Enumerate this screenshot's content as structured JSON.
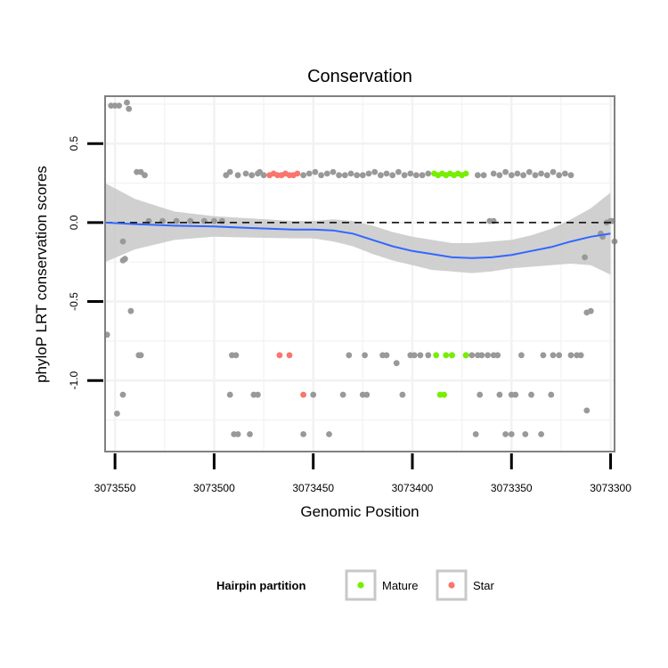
{
  "chart_data": {
    "type": "scatter",
    "title": "Conservation",
    "xlabel": "Genomic Position",
    "ylabel": "phyloP LRT conservation scores",
    "x_reversed": true,
    "xlim": [
      3073555,
      3073298
    ],
    "ylim": [
      -1.45,
      0.8
    ],
    "xticks": [
      3073550,
      3073500,
      3073450,
      3073400,
      3073350,
      3073300
    ],
    "xtick_labels": [
      "3073550",
      "3073500",
      "3073450",
      "3073400",
      "3073350",
      "3073300"
    ],
    "yticks": [
      0.5,
      0.0,
      -0.5,
      -1.0
    ],
    "ytick_labels": [
      "0.5",
      "0.0",
      "-0.5",
      "-1.0"
    ],
    "grid": true,
    "reference_line": {
      "y": 0.0,
      "style": "dashed",
      "color": "#000000"
    },
    "colors": {
      "Other": "#999999",
      "Mature": "#77ee00",
      "Star": "#f8766d",
      "smooth": "#3366ff",
      "ribbon": "#c8c8c8",
      "panel_border": "#808080"
    },
    "legend": {
      "title": "Hairpin partition",
      "position": "bottom",
      "entries": [
        {
          "name": "Mature",
          "color": "#77ee00"
        },
        {
          "name": "Star",
          "color": "#f8766d"
        }
      ]
    },
    "smooth": {
      "x": [
        3073555,
        3073540,
        3073520,
        3073500,
        3073480,
        3073460,
        3073450,
        3073440,
        3073430,
        3073420,
        3073410,
        3073400,
        3073390,
        3073380,
        3073370,
        3073360,
        3073350,
        3073340,
        3073330,
        3073320,
        3073310,
        3073300
      ],
      "y": [
        0.0,
        -0.01,
        -0.02,
        -0.025,
        -0.035,
        -0.045,
        -0.045,
        -0.05,
        -0.07,
        -0.11,
        -0.15,
        -0.18,
        -0.2,
        -0.22,
        -0.225,
        -0.22,
        -0.205,
        -0.18,
        -0.155,
        -0.12,
        -0.09,
        -0.07
      ],
      "lower": [
        -0.25,
        -0.17,
        -0.11,
        -0.09,
        -0.095,
        -0.1,
        -0.1,
        -0.12,
        -0.15,
        -0.2,
        -0.24,
        -0.27,
        -0.3,
        -0.31,
        -0.32,
        -0.31,
        -0.29,
        -0.28,
        -0.27,
        -0.26,
        -0.27,
        -0.33
      ],
      "upper": [
        0.25,
        0.15,
        0.07,
        0.04,
        0.025,
        0.01,
        0.01,
        0.02,
        0.01,
        -0.02,
        -0.06,
        -0.09,
        -0.11,
        -0.13,
        -0.13,
        -0.12,
        -0.11,
        -0.08,
        -0.04,
        0.02,
        0.09,
        0.19
      ]
    },
    "series": [
      {
        "name": "Other",
        "points": [
          [
            3073552,
            0.74
          ],
          [
            3073550,
            0.74
          ],
          [
            3073548,
            0.74
          ],
          [
            3073544,
            0.76
          ],
          [
            3073543,
            0.72
          ],
          [
            3073539,
            0.32
          ],
          [
            3073537,
            0.32
          ],
          [
            3073535,
            0.3
          ],
          [
            3073538,
            -0.84
          ],
          [
            3073537,
            -0.84
          ],
          [
            3073542,
            -0.56
          ],
          [
            3073545,
            -0.23
          ],
          [
            3073546,
            -0.24
          ],
          [
            3073546,
            -0.12
          ],
          [
            3073554,
            -0.71
          ],
          [
            3073549,
            -1.21
          ],
          [
            3073546,
            -1.09
          ],
          [
            3073533,
            0.01
          ],
          [
            3073526,
            0.01
          ],
          [
            3073519,
            0.01
          ],
          [
            3073512,
            0.01
          ],
          [
            3073505,
            0.01
          ],
          [
            3073500,
            0.01
          ],
          [
            3073496,
            0.01
          ],
          [
            3073494,
            0.3
          ],
          [
            3073492,
            0.32
          ],
          [
            3073488,
            0.3
          ],
          [
            3073484,
            0.31
          ],
          [
            3073481,
            0.3
          ],
          [
            3073478,
            0.31
          ],
          [
            3073477,
            0.32
          ],
          [
            3073475,
            0.3
          ],
          [
            3073455,
            0.3
          ],
          [
            3073452,
            0.31
          ],
          [
            3073449,
            0.32
          ],
          [
            3073446,
            0.3
          ],
          [
            3073443,
            0.31
          ],
          [
            3073440,
            0.32
          ],
          [
            3073437,
            0.3
          ],
          [
            3073434,
            0.3
          ],
          [
            3073431,
            0.31
          ],
          [
            3073428,
            0.3
          ],
          [
            3073425,
            0.3
          ],
          [
            3073422,
            0.31
          ],
          [
            3073419,
            0.32
          ],
          [
            3073416,
            0.3
          ],
          [
            3073413,
            0.31
          ],
          [
            3073410,
            0.3
          ],
          [
            3073407,
            0.32
          ],
          [
            3073404,
            0.3
          ],
          [
            3073401,
            0.31
          ],
          [
            3073398,
            0.3
          ],
          [
            3073395,
            0.3
          ],
          [
            3073392,
            0.31
          ],
          [
            3073367,
            0.3
          ],
          [
            3073364,
            0.3
          ],
          [
            3073359,
            0.31
          ],
          [
            3073356,
            0.3
          ],
          [
            3073353,
            0.32
          ],
          [
            3073350,
            0.3
          ],
          [
            3073347,
            0.31
          ],
          [
            3073344,
            0.3
          ],
          [
            3073341,
            0.32
          ],
          [
            3073338,
            0.3
          ],
          [
            3073335,
            0.31
          ],
          [
            3073332,
            0.3
          ],
          [
            3073329,
            0.32
          ],
          [
            3073326,
            0.3
          ],
          [
            3073323,
            0.31
          ],
          [
            3073320,
            0.3
          ],
          [
            3073361,
            0.01
          ],
          [
            3073359,
            0.01
          ],
          [
            3073300,
            0.01
          ],
          [
            3073299,
            0.01
          ],
          [
            3073302,
            0.0
          ],
          [
            3073304,
            -0.09
          ],
          [
            3073305,
            -0.07
          ],
          [
            3073298,
            -0.12
          ],
          [
            3073310,
            -0.56
          ],
          [
            3073312,
            -0.57
          ],
          [
            3073313,
            -0.22
          ],
          [
            3073312,
            -1.19
          ],
          [
            3073491,
            -0.84
          ],
          [
            3073489,
            -0.84
          ],
          [
            3073492,
            -1.09
          ],
          [
            3073480,
            -1.09
          ],
          [
            3073478,
            -1.09
          ],
          [
            3073490,
            -1.34
          ],
          [
            3073488,
            -1.34
          ],
          [
            3073482,
            -1.34
          ],
          [
            3073455,
            -1.34
          ],
          [
            3073442,
            -1.34
          ],
          [
            3073450,
            -1.09
          ],
          [
            3073435,
            -1.09
          ],
          [
            3073425,
            -1.09
          ],
          [
            3073423,
            -1.09
          ],
          [
            3073405,
            -1.09
          ],
          [
            3073432,
            -0.84
          ],
          [
            3073424,
            -0.84
          ],
          [
            3073415,
            -0.84
          ],
          [
            3073413,
            -0.84
          ],
          [
            3073401,
            -0.84
          ],
          [
            3073399,
            -0.84
          ],
          [
            3073396,
            -0.84
          ],
          [
            3073392,
            -0.84
          ],
          [
            3073373,
            -0.84
          ],
          [
            3073370,
            -0.84
          ],
          [
            3073367,
            -0.84
          ],
          [
            3073365,
            -0.84
          ],
          [
            3073362,
            -0.84
          ],
          [
            3073359,
            -0.84
          ],
          [
            3073357,
            -0.84
          ],
          [
            3073345,
            -0.84
          ],
          [
            3073334,
            -0.84
          ],
          [
            3073329,
            -0.84
          ],
          [
            3073326,
            -0.84
          ],
          [
            3073320,
            -0.84
          ],
          [
            3073317,
            -0.84
          ],
          [
            3073315,
            -0.84
          ],
          [
            3073408,
            -0.89
          ],
          [
            3073380,
            -0.84
          ],
          [
            3073366,
            -1.09
          ],
          [
            3073356,
            -1.09
          ],
          [
            3073350,
            -1.09
          ],
          [
            3073348,
            -1.09
          ],
          [
            3073340,
            -1.09
          ],
          [
            3073330,
            -1.09
          ],
          [
            3073368,
            -1.34
          ],
          [
            3073353,
            -1.34
          ],
          [
            3073350,
            -1.34
          ],
          [
            3073343,
            -1.34
          ],
          [
            3073335,
            -1.34
          ]
        ]
      },
      {
        "name": "Star",
        "points": [
          [
            3073472,
            0.3
          ],
          [
            3073470,
            0.31
          ],
          [
            3073468,
            0.3
          ],
          [
            3073466,
            0.3
          ],
          [
            3073464,
            0.31
          ],
          [
            3073462,
            0.3
          ],
          [
            3073460,
            0.3
          ],
          [
            3073458,
            0.31
          ],
          [
            3073467,
            -0.84
          ],
          [
            3073462,
            -0.84
          ],
          [
            3073455,
            -1.09
          ]
        ]
      },
      {
        "name": "Mature",
        "points": [
          [
            3073389,
            0.31
          ],
          [
            3073387,
            0.3
          ],
          [
            3073385,
            0.31
          ],
          [
            3073383,
            0.3
          ],
          [
            3073381,
            0.31
          ],
          [
            3073379,
            0.3
          ],
          [
            3073377,
            0.31
          ],
          [
            3073375,
            0.3
          ],
          [
            3073373,
            0.31
          ],
          [
            3073388,
            -0.84
          ],
          [
            3073383,
            -0.84
          ],
          [
            3073380,
            -0.84
          ],
          [
            3073373,
            -0.84
          ],
          [
            3073386,
            -1.09
          ],
          [
            3073384,
            -1.09
          ]
        ]
      }
    ]
  }
}
